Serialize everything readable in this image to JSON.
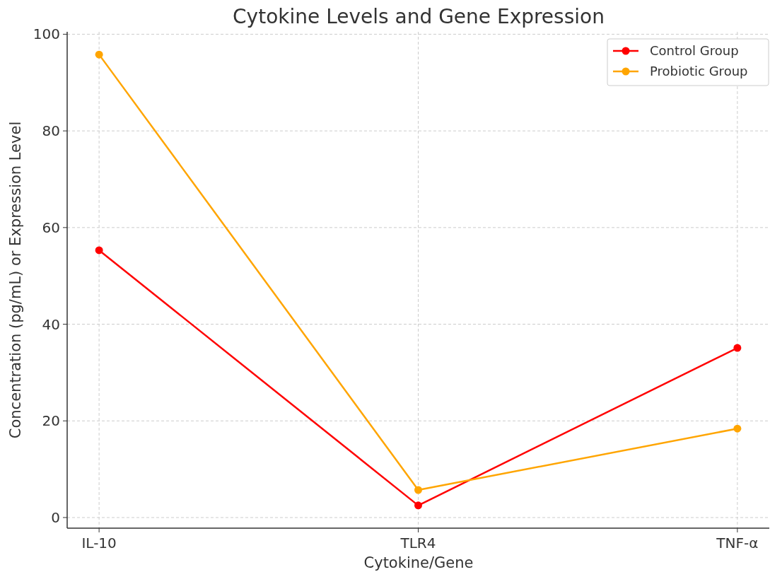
{
  "chart_data": {
    "type": "line",
    "title": "Cytokine Levels and Gene Expression",
    "xlabel": "Cytokine/Gene",
    "ylabel": "Concentration (pg/mL) or Expression Level",
    "categories": [
      "IL-10",
      "TLR4",
      "TNF-α"
    ],
    "series": [
      {
        "name": "Control Group",
        "color": "#ff0000",
        "values": [
          55.3,
          2.5,
          35.1
        ]
      },
      {
        "name": "Probiotic Group",
        "color": "#ffa500",
        "values": [
          95.8,
          5.7,
          18.4
        ]
      }
    ],
    "ylim": [
      -2.2,
      100.5
    ],
    "yticks": [
      0,
      20,
      40,
      60,
      80,
      100
    ],
    "grid": true,
    "legend": "top right",
    "marker": "circle",
    "line_style": "solid"
  }
}
